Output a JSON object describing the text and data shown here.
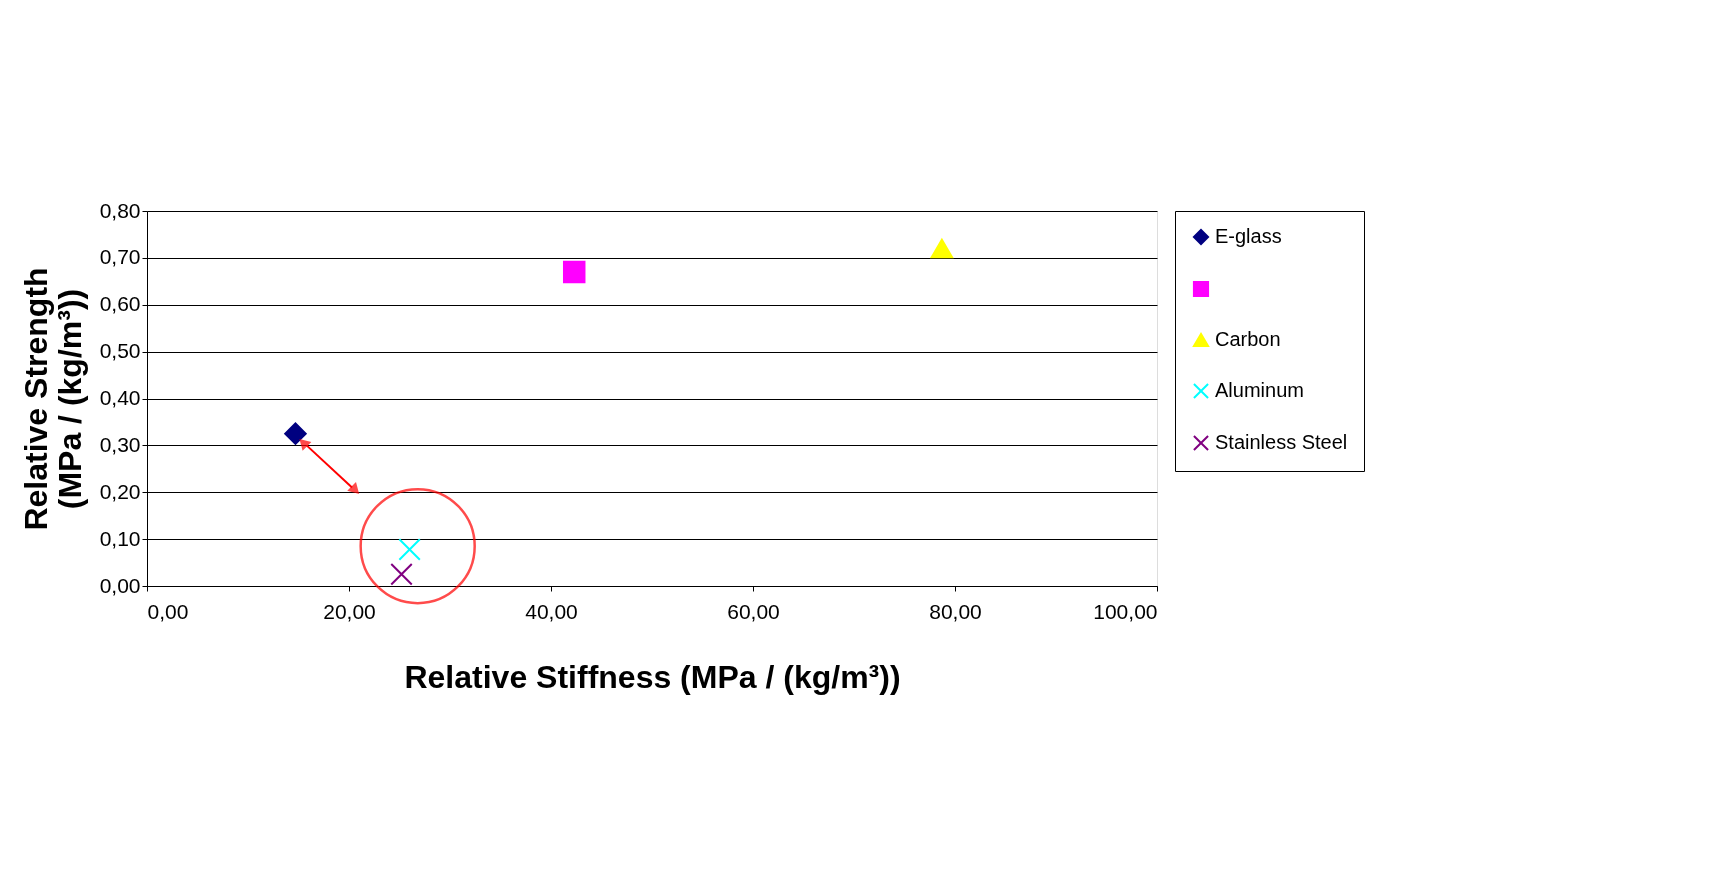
{
  "chart_data": {
    "type": "scatter",
    "xlabel": "Relative Stiffness (MPa / (kg/m³))",
    "ylabel": "Relative Strength\n(MPa / (kg/m³))",
    "xlim": [
      0,
      100
    ],
    "xticks": [
      {
        "value": 0,
        "label": "0,00"
      },
      {
        "value": 20,
        "label": "20,00"
      },
      {
        "value": 40,
        "label": "40,00"
      },
      {
        "value": 60,
        "label": "60,00"
      },
      {
        "value": 80,
        "label": "80,00"
      },
      {
        "value": 100,
        "label": "100,00"
      }
    ],
    "ylim": [
      0,
      0.8
    ],
    "yticks": [
      {
        "value": 0,
        "label": "0,00"
      },
      {
        "value": 0.1,
        "label": "0,10"
      },
      {
        "value": 0.2,
        "label": "0,20"
      },
      {
        "value": 0.3,
        "label": "0,30"
      },
      {
        "value": 0.4,
        "label": "0,40"
      },
      {
        "value": 0.5,
        "label": "0,50"
      },
      {
        "value": 0.6,
        "label": "0,60"
      },
      {
        "value": 0.7,
        "label": "0,70"
      },
      {
        "value": 0.8,
        "label": "0,80"
      }
    ],
    "grid": "y",
    "legend": "right",
    "series": [
      {
        "name": "E-glass",
        "color": "#000080",
        "marker": "diamond",
        "x": [
          14.7
        ],
        "values": [
          0.325
        ]
      },
      {
        "color": "#ff00ff",
        "marker": "square",
        "x": [
          42.3
        ],
        "values": [
          0.67
        ]
      },
      {
        "name": "Carbon",
        "color": "#ffff00",
        "marker": "triangle",
        "x": [
          78.7
        ],
        "values": [
          0.72
        ]
      },
      {
        "name": "Aluminum",
        "color": "#00ffff",
        "marker": "cross",
        "x": [
          26.0
        ],
        "values": [
          0.078
        ]
      },
      {
        "name": "Stainless Steel",
        "color": "#800080",
        "marker": "cross",
        "x": [
          25.2
        ],
        "values": [
          0.025
        ]
      }
    ]
  }
}
